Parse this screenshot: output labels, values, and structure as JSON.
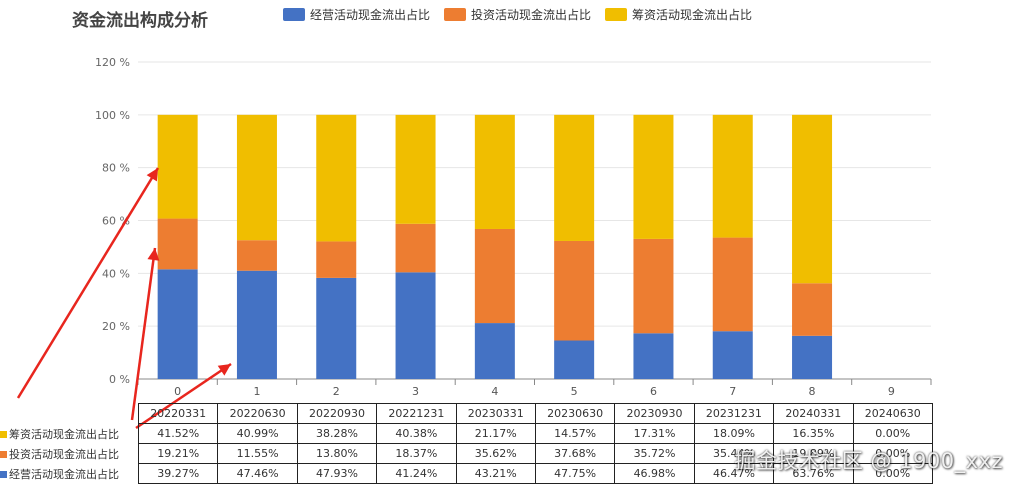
{
  "chart_data": {
    "type": "bar",
    "stacked": true,
    "title": "资金流出构成分析",
    "categories": [
      "0",
      "1",
      "2",
      "3",
      "4",
      "5",
      "6",
      "7",
      "8",
      "9"
    ],
    "periods": [
      "20220331",
      "20220630",
      "20220930",
      "20221231",
      "20230331",
      "20230630",
      "20230930",
      "20231231",
      "20240331",
      "20240630"
    ],
    "ylim": [
      0,
      120
    ],
    "yticks": [
      0,
      20,
      40,
      60,
      80,
      100,
      120
    ],
    "ytick_labels": [
      "0 %",
      "20 %",
      "40 %",
      "60 %",
      "80 %",
      "100 %",
      "120 %"
    ],
    "series": [
      {
        "name": "经营活动现金流出占比",
        "color": "#4472C4",
        "values": [
          41.52,
          40.99,
          38.28,
          40.38,
          21.17,
          14.57,
          17.31,
          18.09,
          16.35,
          0
        ],
        "labels": [
          "41.52%",
          "40.99%",
          "38.28%",
          "40.38%",
          "21.17%",
          "14.57%",
          "17.31%",
          "18.09%",
          "16.35%",
          "0.00%"
        ]
      },
      {
        "name": "投资活动现金流出占比",
        "color": "#ED7D31",
        "values": [
          19.21,
          11.55,
          13.8,
          18.37,
          35.62,
          37.68,
          35.72,
          35.44,
          19.89,
          0
        ],
        "labels": [
          "19.21%",
          "11.55%",
          "13.80%",
          "18.37%",
          "35.62%",
          "37.68%",
          "35.72%",
          "35.44%",
          "19.89%",
          "0.00%"
        ]
      },
      {
        "name": "筹资活动现金流出占比",
        "color": "#F0BE00",
        "values": [
          39.27,
          47.46,
          47.93,
          41.24,
          43.21,
          47.75,
          46.98,
          46.47,
          63.76,
          0
        ],
        "labels": [
          "39.27%",
          "47.46%",
          "47.93%",
          "41.24%",
          "43.21%",
          "47.75%",
          "46.98%",
          "46.47%",
          "63.76%",
          "0.00%"
        ]
      }
    ]
  },
  "table": {
    "row_labels": [
      {
        "text": "筹资活动现金流出占比",
        "color": "#F0BE00",
        "series_index": 0
      },
      {
        "text": "投资活动现金流出占比",
        "color": "#ED7D31",
        "series_index": 1
      },
      {
        "text": "经营活动现金流出占比",
        "color": "#4472C4",
        "series_index": 2
      }
    ]
  },
  "watermark": "掘金技术社区 @ 1900_xxz"
}
